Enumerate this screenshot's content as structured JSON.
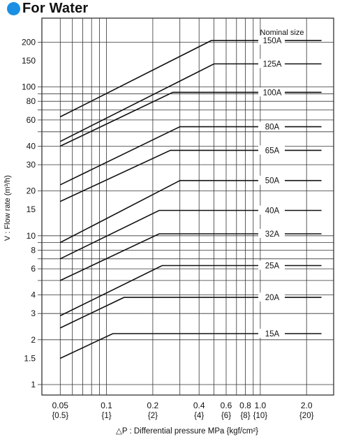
{
  "header": {
    "title": "For Water",
    "bullet_color": "#1a8fe3"
  },
  "chart_data": {
    "type": "line",
    "title": "For Water",
    "xlabel": "△P : Differential pressure MPa {kgf/cm²}",
    "ylabel": "V : Flow rate (m³/h)",
    "xscale": "log",
    "yscale": "log",
    "xlim": [
      0.038,
      3.0
    ],
    "ylim": [
      0.85,
      290
    ],
    "x_ticks": [
      {
        "value": 0.05,
        "label": "0.05",
        "sublabel": "{0.5}"
      },
      {
        "value": 0.1,
        "label": "0.1",
        "sublabel": "{1}"
      },
      {
        "value": 0.2,
        "label": "0.2",
        "sublabel": "{2}"
      },
      {
        "value": 0.4,
        "label": "0.4",
        "sublabel": "{4}"
      },
      {
        "value": 0.6,
        "label": "0.6",
        "sublabel": "{6}"
      },
      {
        "value": 0.8,
        "label": "0.8",
        "sublabel": "{8}"
      },
      {
        "value": 1.0,
        "label": "1.0",
        "sublabel": "{10}"
      },
      {
        "value": 2.0,
        "label": "2.0",
        "sublabel": "{20}"
      }
    ],
    "y_ticks": [
      {
        "value": 200,
        "label": "200"
      },
      {
        "value": 150,
        "label": "150"
      },
      {
        "value": 100,
        "label": "100"
      },
      {
        "value": 80,
        "label": "80"
      },
      {
        "value": 60,
        "label": "60"
      },
      {
        "value": 40,
        "label": "40"
      },
      {
        "value": 30,
        "label": "30"
      },
      {
        "value": 20,
        "label": "20"
      },
      {
        "value": 15,
        "label": "15"
      },
      {
        "value": 10,
        "label": "10"
      },
      {
        "value": 8,
        "label": "8"
      },
      {
        "value": 6,
        "label": "6"
      },
      {
        "value": 4,
        "label": "4"
      },
      {
        "value": 3,
        "label": "3"
      },
      {
        "value": 2,
        "label": "2"
      },
      {
        "value": 1.5,
        "label": "1.5"
      },
      {
        "value": 1,
        "label": "1"
      }
    ],
    "x_gridlines": [
      0.05,
      0.06,
      0.07,
      0.08,
      0.09,
      0.1,
      0.2,
      0.3,
      0.4,
      0.5,
      0.6,
      0.7,
      0.8,
      0.9,
      1.0,
      2.0
    ],
    "y_gridlines": [
      1,
      2,
      3,
      4,
      5,
      6,
      7,
      8,
      9,
      10,
      20,
      30,
      40,
      50,
      60,
      70,
      80,
      90,
      100,
      200
    ],
    "grid": true,
    "legend_title": "Nominal size",
    "series": [
      {
        "name": "150A",
        "points": [
          [
            0.05,
            63
          ],
          [
            0.48,
            205
          ],
          [
            2.5,
            205
          ]
        ]
      },
      {
        "name": "125A",
        "points": [
          [
            0.05,
            43
          ],
          [
            0.5,
            143
          ],
          [
            2.5,
            143
          ]
        ]
      },
      {
        "name": "100A",
        "points": [
          [
            0.05,
            40
          ],
          [
            0.27,
            92
          ],
          [
            2.5,
            92
          ]
        ]
      },
      {
        "name": "80A",
        "points": [
          [
            0.05,
            22
          ],
          [
            0.3,
            54
          ],
          [
            2.5,
            54
          ]
        ]
      },
      {
        "name": "65A",
        "points": [
          [
            0.05,
            17
          ],
          [
            0.26,
            37.5
          ],
          [
            2.5,
            37.5
          ]
        ]
      },
      {
        "name": "50A",
        "points": [
          [
            0.05,
            9
          ],
          [
            0.3,
            23.5
          ],
          [
            2.5,
            23.5
          ]
        ]
      },
      {
        "name": "40A",
        "points": [
          [
            0.05,
            7
          ],
          [
            0.22,
            14.8
          ],
          [
            2.5,
            14.8
          ]
        ]
      },
      {
        "name": "32A",
        "points": [
          [
            0.05,
            5
          ],
          [
            0.22,
            10.3
          ],
          [
            2.5,
            10.3
          ]
        ]
      },
      {
        "name": "25A",
        "points": [
          [
            0.05,
            2.9
          ],
          [
            0.23,
            6.3
          ],
          [
            2.5,
            6.3
          ]
        ]
      },
      {
        "name": "20A",
        "points": [
          [
            0.05,
            2.4
          ],
          [
            0.13,
            3.85
          ],
          [
            2.5,
            3.85
          ]
        ]
      },
      {
        "name": "15A",
        "points": [
          [
            0.05,
            1.5
          ],
          [
            0.11,
            2.2
          ],
          [
            2.5,
            2.2
          ]
        ]
      }
    ]
  }
}
